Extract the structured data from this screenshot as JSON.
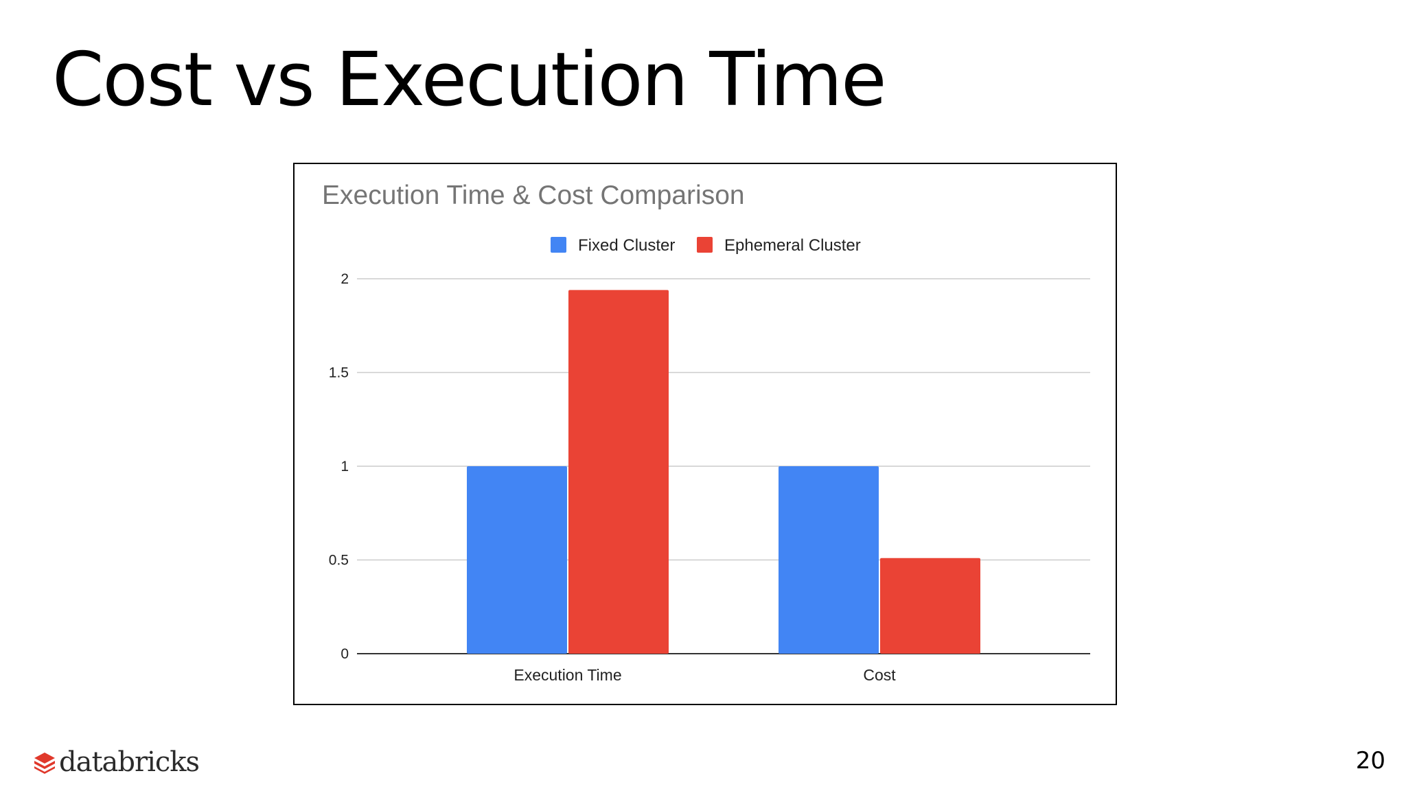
{
  "slide": {
    "title": "Cost vs Execution Time",
    "page_number": "20",
    "logo_text": "databricks"
  },
  "colors": {
    "fixed": "#4285f4",
    "ephemeral": "#ea4335",
    "logo_mark": "#e0382b"
  },
  "icons": {
    "logo": "databricks-logo-icon"
  },
  "chart_data": {
    "type": "bar",
    "title": "Execution Time & Cost Comparison",
    "xlabel": "",
    "ylabel": "",
    "categories": [
      "Execution Time",
      "Cost"
    ],
    "series": [
      {
        "name": "Fixed Cluster",
        "values": [
          1.0,
          1.0
        ],
        "color": "#4285f4"
      },
      {
        "name": "Ephemeral Cluster",
        "values": [
          1.94,
          0.51
        ],
        "color": "#ea4335"
      }
    ],
    "ylim": [
      0,
      2
    ],
    "yticks": [
      "0",
      "0.5",
      "1",
      "1.5",
      "2"
    ],
    "grid": true,
    "legend": "top-center"
  }
}
